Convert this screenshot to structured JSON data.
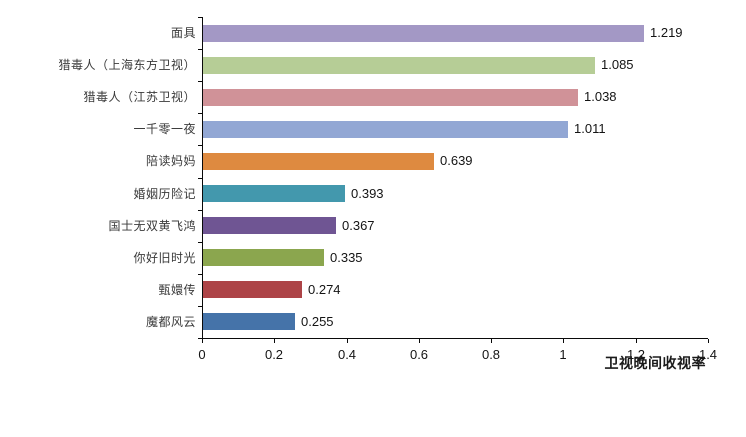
{
  "chart_data": {
    "type": "bar",
    "orientation": "horizontal",
    "title": "",
    "xlabel": "卫视晚间收视率",
    "ylabel": "",
    "xlim": [
      0,
      1.4
    ],
    "x_ticks": [
      0,
      0.2,
      0.4,
      0.6,
      0.8,
      1,
      1.2,
      1.4
    ],
    "x_tick_labels": [
      "0",
      "0.2",
      "0.4",
      "0.6",
      "0.8",
      "1",
      "1.2",
      "1.4"
    ],
    "grid": false,
    "value_labels_shown": true,
    "categories": [
      "面具",
      "猎毒人（上海东方卫视）",
      "猎毒人（江苏卫视）",
      "一千零一夜",
      "陪读妈妈",
      "婚姻历险记",
      "国士无双黄飞鸿",
      "你好旧时光",
      "甄嬛传",
      "魔都风云"
    ],
    "values": [
      1.219,
      1.085,
      1.038,
      1.011,
      0.639,
      0.393,
      0.367,
      0.335,
      0.274,
      0.255
    ],
    "value_labels": [
      "1.219",
      "1.085",
      "1.038",
      "1.011",
      "0.639",
      "0.393",
      "0.367",
      "0.335",
      "0.274",
      "0.255"
    ],
    "bar_colors": [
      "#a398c5",
      "#b6cd96",
      "#d09298",
      "#92a7d4",
      "#de8a40",
      "#4398ad",
      "#6f5593",
      "#8ba64e",
      "#ad4447",
      "#4573a9"
    ]
  },
  "colors": {
    "axis": "#0a0a0a",
    "category_text": "#3a3a3a",
    "number_text": "#141414",
    "background": "#ffffff"
  }
}
